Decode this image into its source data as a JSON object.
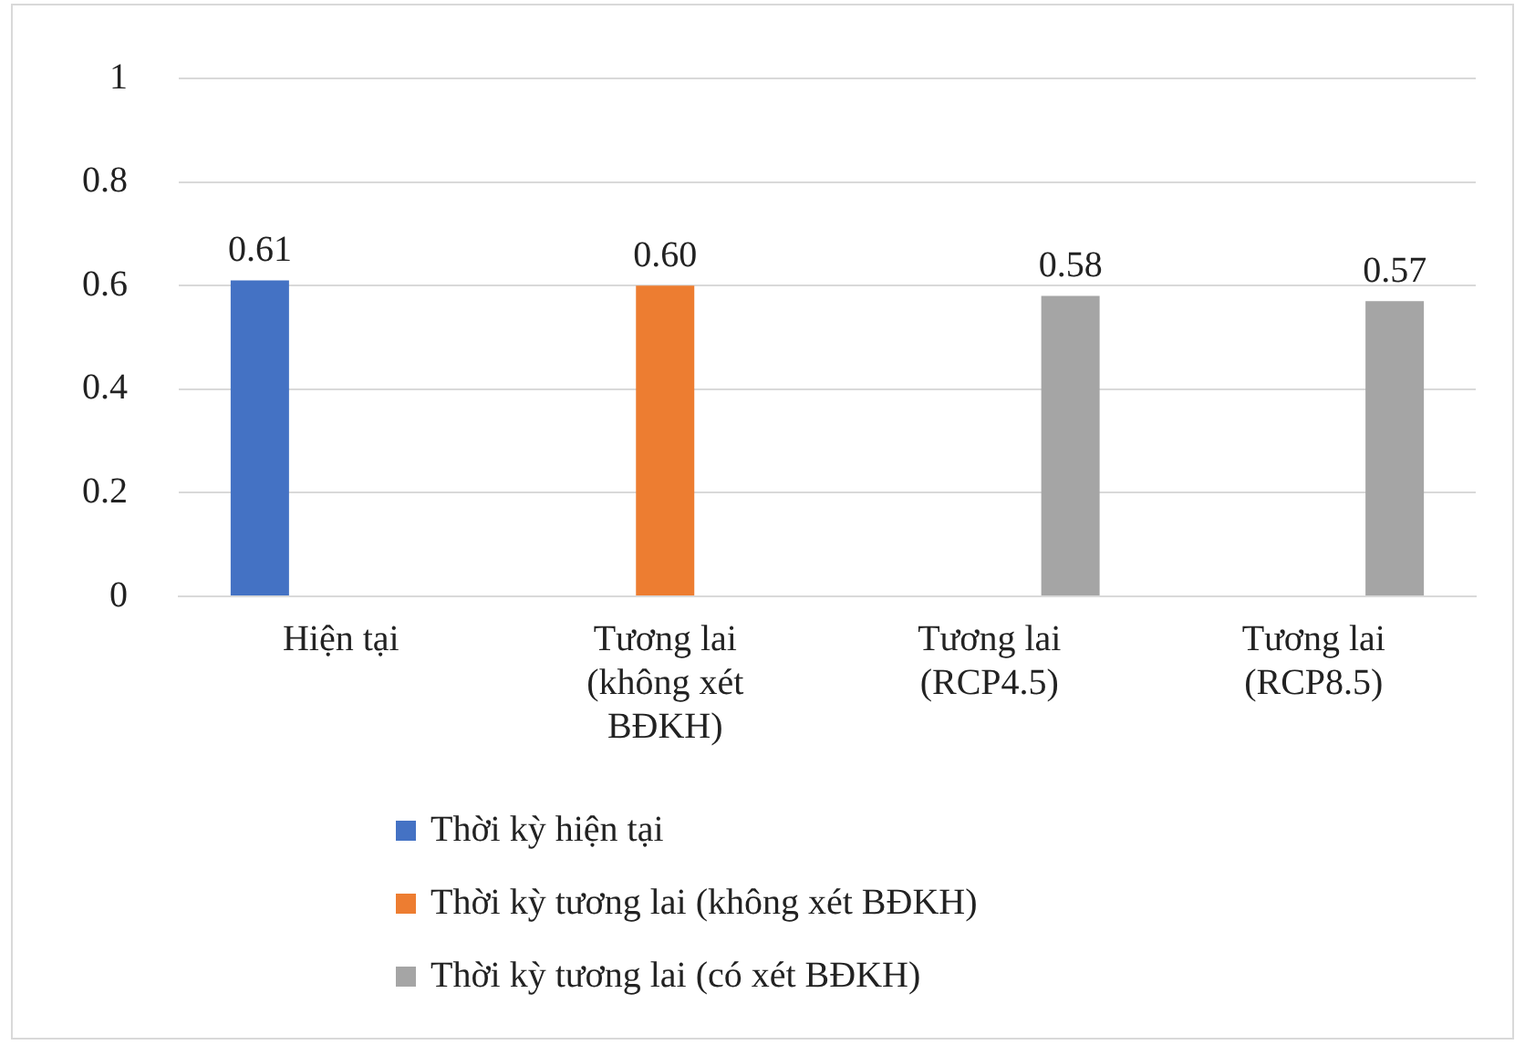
{
  "chart_data": {
    "type": "bar",
    "categories": [
      "Hiện tại",
      "Tương lai (không xét BĐKH)",
      "Tương lai (RCP4.5)",
      "Tương lai (RCP8.5)"
    ],
    "series": [
      {
        "name": "Thời kỳ hiện tại",
        "color": "#4472c4",
        "values": [
          0.61,
          null,
          null,
          null
        ],
        "value_labels": [
          "0.61",
          null,
          null,
          null
        ]
      },
      {
        "name": "Thời kỳ tương lai (không xét BĐKH)",
        "color": "#ed7d31",
        "values": [
          null,
          0.6,
          null,
          null
        ],
        "value_labels": [
          null,
          "0.60",
          null,
          null
        ]
      },
      {
        "name": "Thời kỳ tương lai (có xét BĐKH)",
        "color": "#a5a5a5",
        "values": [
          null,
          null,
          0.58,
          0.57
        ],
        "value_labels": [
          null,
          null,
          "0.58",
          "0.57"
        ]
      }
    ],
    "ylim": [
      0,
      1
    ],
    "yticks": [
      0,
      0.2,
      0.4,
      0.6,
      0.8,
      1
    ],
    "grid": "y",
    "legend": "bottom"
  }
}
